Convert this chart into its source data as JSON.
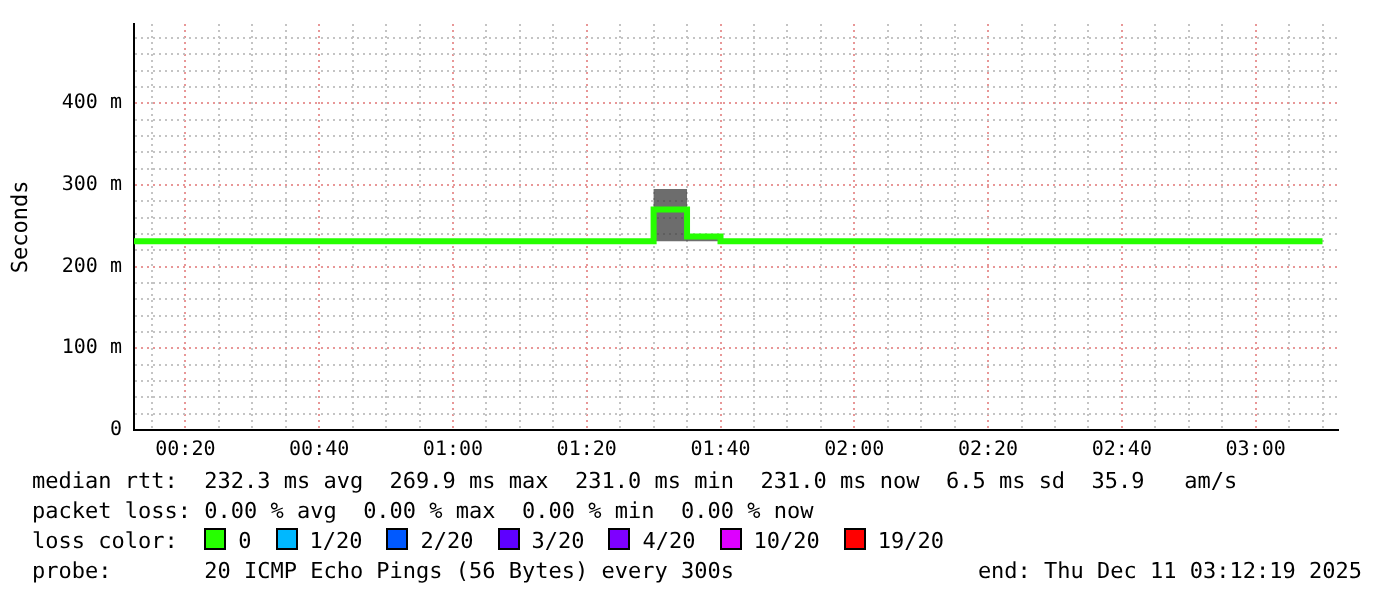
{
  "chart_data": {
    "type": "step",
    "ylabel": "Seconds",
    "legend_title": "loss color:",
    "legend": "bottom",
    "grid": true,
    "xlim": [
      0.2053,
      3.2053
    ],
    "ylim": [
      0,
      497
    ],
    "xticks": [
      {
        "value": 0.25,
        "label": null
      },
      {
        "value": 0.3333,
        "label": "00:20"
      },
      {
        "value": 0.4167,
        "label": null
      },
      {
        "value": 0.5,
        "label": null
      },
      {
        "value": 0.5833,
        "label": null
      },
      {
        "value": 0.6667,
        "label": "00:40"
      },
      {
        "value": 0.75,
        "label": null
      },
      {
        "value": 0.8333,
        "label": null
      },
      {
        "value": 0.9167,
        "label": null
      },
      {
        "value": 1,
        "label": "01:00"
      },
      {
        "value": 1.0833,
        "label": null
      },
      {
        "value": 1.1667,
        "label": null
      },
      {
        "value": 1.25,
        "label": null
      },
      {
        "value": 1.3333,
        "label": "01:20"
      },
      {
        "value": 1.4167,
        "label": null
      },
      {
        "value": 1.5,
        "label": null
      },
      {
        "value": 1.5833,
        "label": null
      },
      {
        "value": 1.6667,
        "label": "01:40"
      },
      {
        "value": 1.75,
        "label": null
      },
      {
        "value": 1.8333,
        "label": null
      },
      {
        "value": 1.9167,
        "label": null
      },
      {
        "value": 2,
        "label": "02:00"
      },
      {
        "value": 2.0833,
        "label": null
      },
      {
        "value": 2.1667,
        "label": null
      },
      {
        "value": 2.25,
        "label": null
      },
      {
        "value": 2.3333,
        "label": "02:20"
      },
      {
        "value": 2.4167,
        "label": null
      },
      {
        "value": 2.5,
        "label": null
      },
      {
        "value": 2.5833,
        "label": null
      },
      {
        "value": 2.6667,
        "label": "02:40"
      },
      {
        "value": 2.75,
        "label": null
      },
      {
        "value": 2.8333,
        "label": null
      },
      {
        "value": 2.9167,
        "label": null
      },
      {
        "value": 3,
        "label": "03:00"
      },
      {
        "value": 3.0833,
        "label": null
      },
      {
        "value": 3.1667,
        "label": null
      }
    ],
    "yticks": [
      0,
      {
        "value": 20,
        "label": null
      },
      {
        "value": 40,
        "label": null
      },
      {
        "value": 60,
        "label": null
      },
      {
        "value": 80,
        "label": null
      },
      {
        "value": 100,
        "label": "100 m"
      },
      {
        "value": 120,
        "label": null
      },
      {
        "value": 140,
        "label": null
      },
      {
        "value": 160,
        "label": null
      },
      {
        "value": 180,
        "label": null
      },
      {
        "value": 200,
        "label": "200 m"
      },
      {
        "value": 220,
        "label": null
      },
      {
        "value": 240,
        "label": null
      },
      {
        "value": 260,
        "label": null
      },
      {
        "value": 280,
        "label": null
      },
      {
        "value": 300,
        "label": "300 m"
      },
      {
        "value": 320,
        "label": null
      },
      {
        "value": 340,
        "label": null
      },
      {
        "value": 360,
        "label": null
      },
      {
        "value": 380,
        "label": null
      },
      {
        "value": 400,
        "label": "400 m"
      },
      {
        "value": 420,
        "label": null
      },
      {
        "value": 440,
        "label": null
      },
      {
        "value": 460,
        "label": null
      },
      {
        "value": 480,
        "label": null
      }
    ],
    "series": [
      {
        "name": "0",
        "color": "#26ff00",
        "x": [
          0.2053,
          1.5,
          1.5833,
          1.6667,
          3.1667
        ],
        "values": [
          231,
          270,
          237,
          231,
          231
        ],
        "lower": [
          231,
          231,
          231,
          231,
          231
        ],
        "upper": [
          231,
          295,
          240,
          231,
          231
        ]
      },
      {
        "name": "1/20",
        "color": "#00b8ff"
      },
      {
        "name": "2/20",
        "color": "#0059ff"
      },
      {
        "name": "3/20",
        "color": "#5e00ff"
      },
      {
        "name": "4/20",
        "color": "#7e00ff"
      },
      {
        "name": "10/20",
        "color": "#dd00ff"
      },
      {
        "name": "19/20",
        "color": "#ff0000"
      }
    ],
    "annotations": [
      "median rtt:  232.3 ms avg  269.9 ms max  231.0 ms min  231.0 ms now  6.5 ms sd  35.9   am/s",
      "packet loss: 0.00 % avg  0.00 % max  0.00 % min  0.00 % now",
      "probe:       20 ICMP Echo Pings (56 Bytes) every 300s",
      "end: Thu Dec 11 03:12:19 2025"
    ]
  }
}
